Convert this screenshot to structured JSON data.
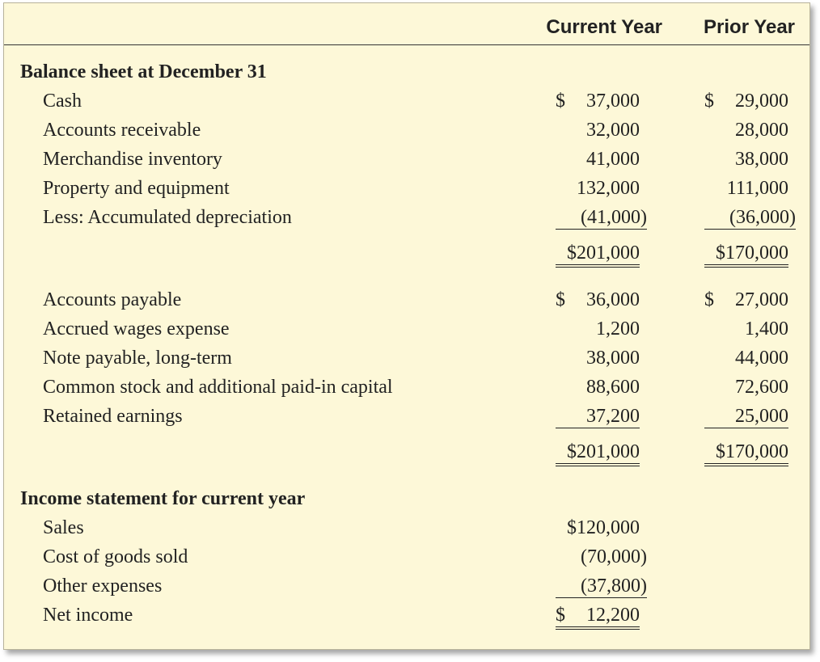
{
  "headers": {
    "current": "Current Year",
    "prior": "Prior Year"
  },
  "balance_sheet": {
    "title": "Balance sheet at December 31",
    "assets": [
      {
        "label": "Cash",
        "cur_sym": "$",
        "cur": "37,000",
        "pri_sym": "$",
        "pri": "29,000"
      },
      {
        "label": "Accounts receivable",
        "cur_sym": "",
        "cur": "32,000",
        "pri_sym": "",
        "pri": "28,000"
      },
      {
        "label": "Merchandise inventory",
        "cur_sym": "",
        "cur": "41,000",
        "pri_sym": "",
        "pri": "38,000"
      },
      {
        "label": "Property and equipment",
        "cur_sym": "",
        "cur": "132,000",
        "pri_sym": "",
        "pri": "111,000"
      },
      {
        "label": "Less: Accumulated depreciation",
        "cur_sym": "",
        "cur": "(41,000)",
        "pri_sym": "",
        "pri": "(36,000)"
      }
    ],
    "assets_total": {
      "cur": "$201,000",
      "pri": "$170,000"
    },
    "liabilities": [
      {
        "label": "Accounts payable",
        "cur_sym": "$",
        "cur": "36,000",
        "pri_sym": "$",
        "pri": "27,000"
      },
      {
        "label": "Accrued wages expense",
        "cur_sym": "",
        "cur": "1,200",
        "pri_sym": "",
        "pri": "1,400"
      },
      {
        "label": "Note payable, long-term",
        "cur_sym": "",
        "cur": "38,000",
        "pri_sym": "",
        "pri": "44,000"
      },
      {
        "label": "Common stock and additional paid-in capital",
        "cur_sym": "",
        "cur": "88,600",
        "pri_sym": "",
        "pri": "72,600"
      },
      {
        "label": "Retained earnings",
        "cur_sym": "",
        "cur": "37,200",
        "pri_sym": "",
        "pri": "25,000"
      }
    ],
    "liabilities_total": {
      "cur": "$201,000",
      "pri": "$170,000"
    }
  },
  "income_statement": {
    "title": "Income statement for current year",
    "rows": [
      {
        "label": "Sales",
        "cur_sym": "",
        "cur": "$120,000"
      },
      {
        "label": "Cost of goods sold",
        "cur_sym": "",
        "cur": "(70,000)"
      },
      {
        "label": "Other expenses",
        "cur_sym": "",
        "cur": "(37,800)"
      },
      {
        "label": "Net income",
        "cur_sym": "$",
        "cur": "12,200"
      }
    ]
  }
}
